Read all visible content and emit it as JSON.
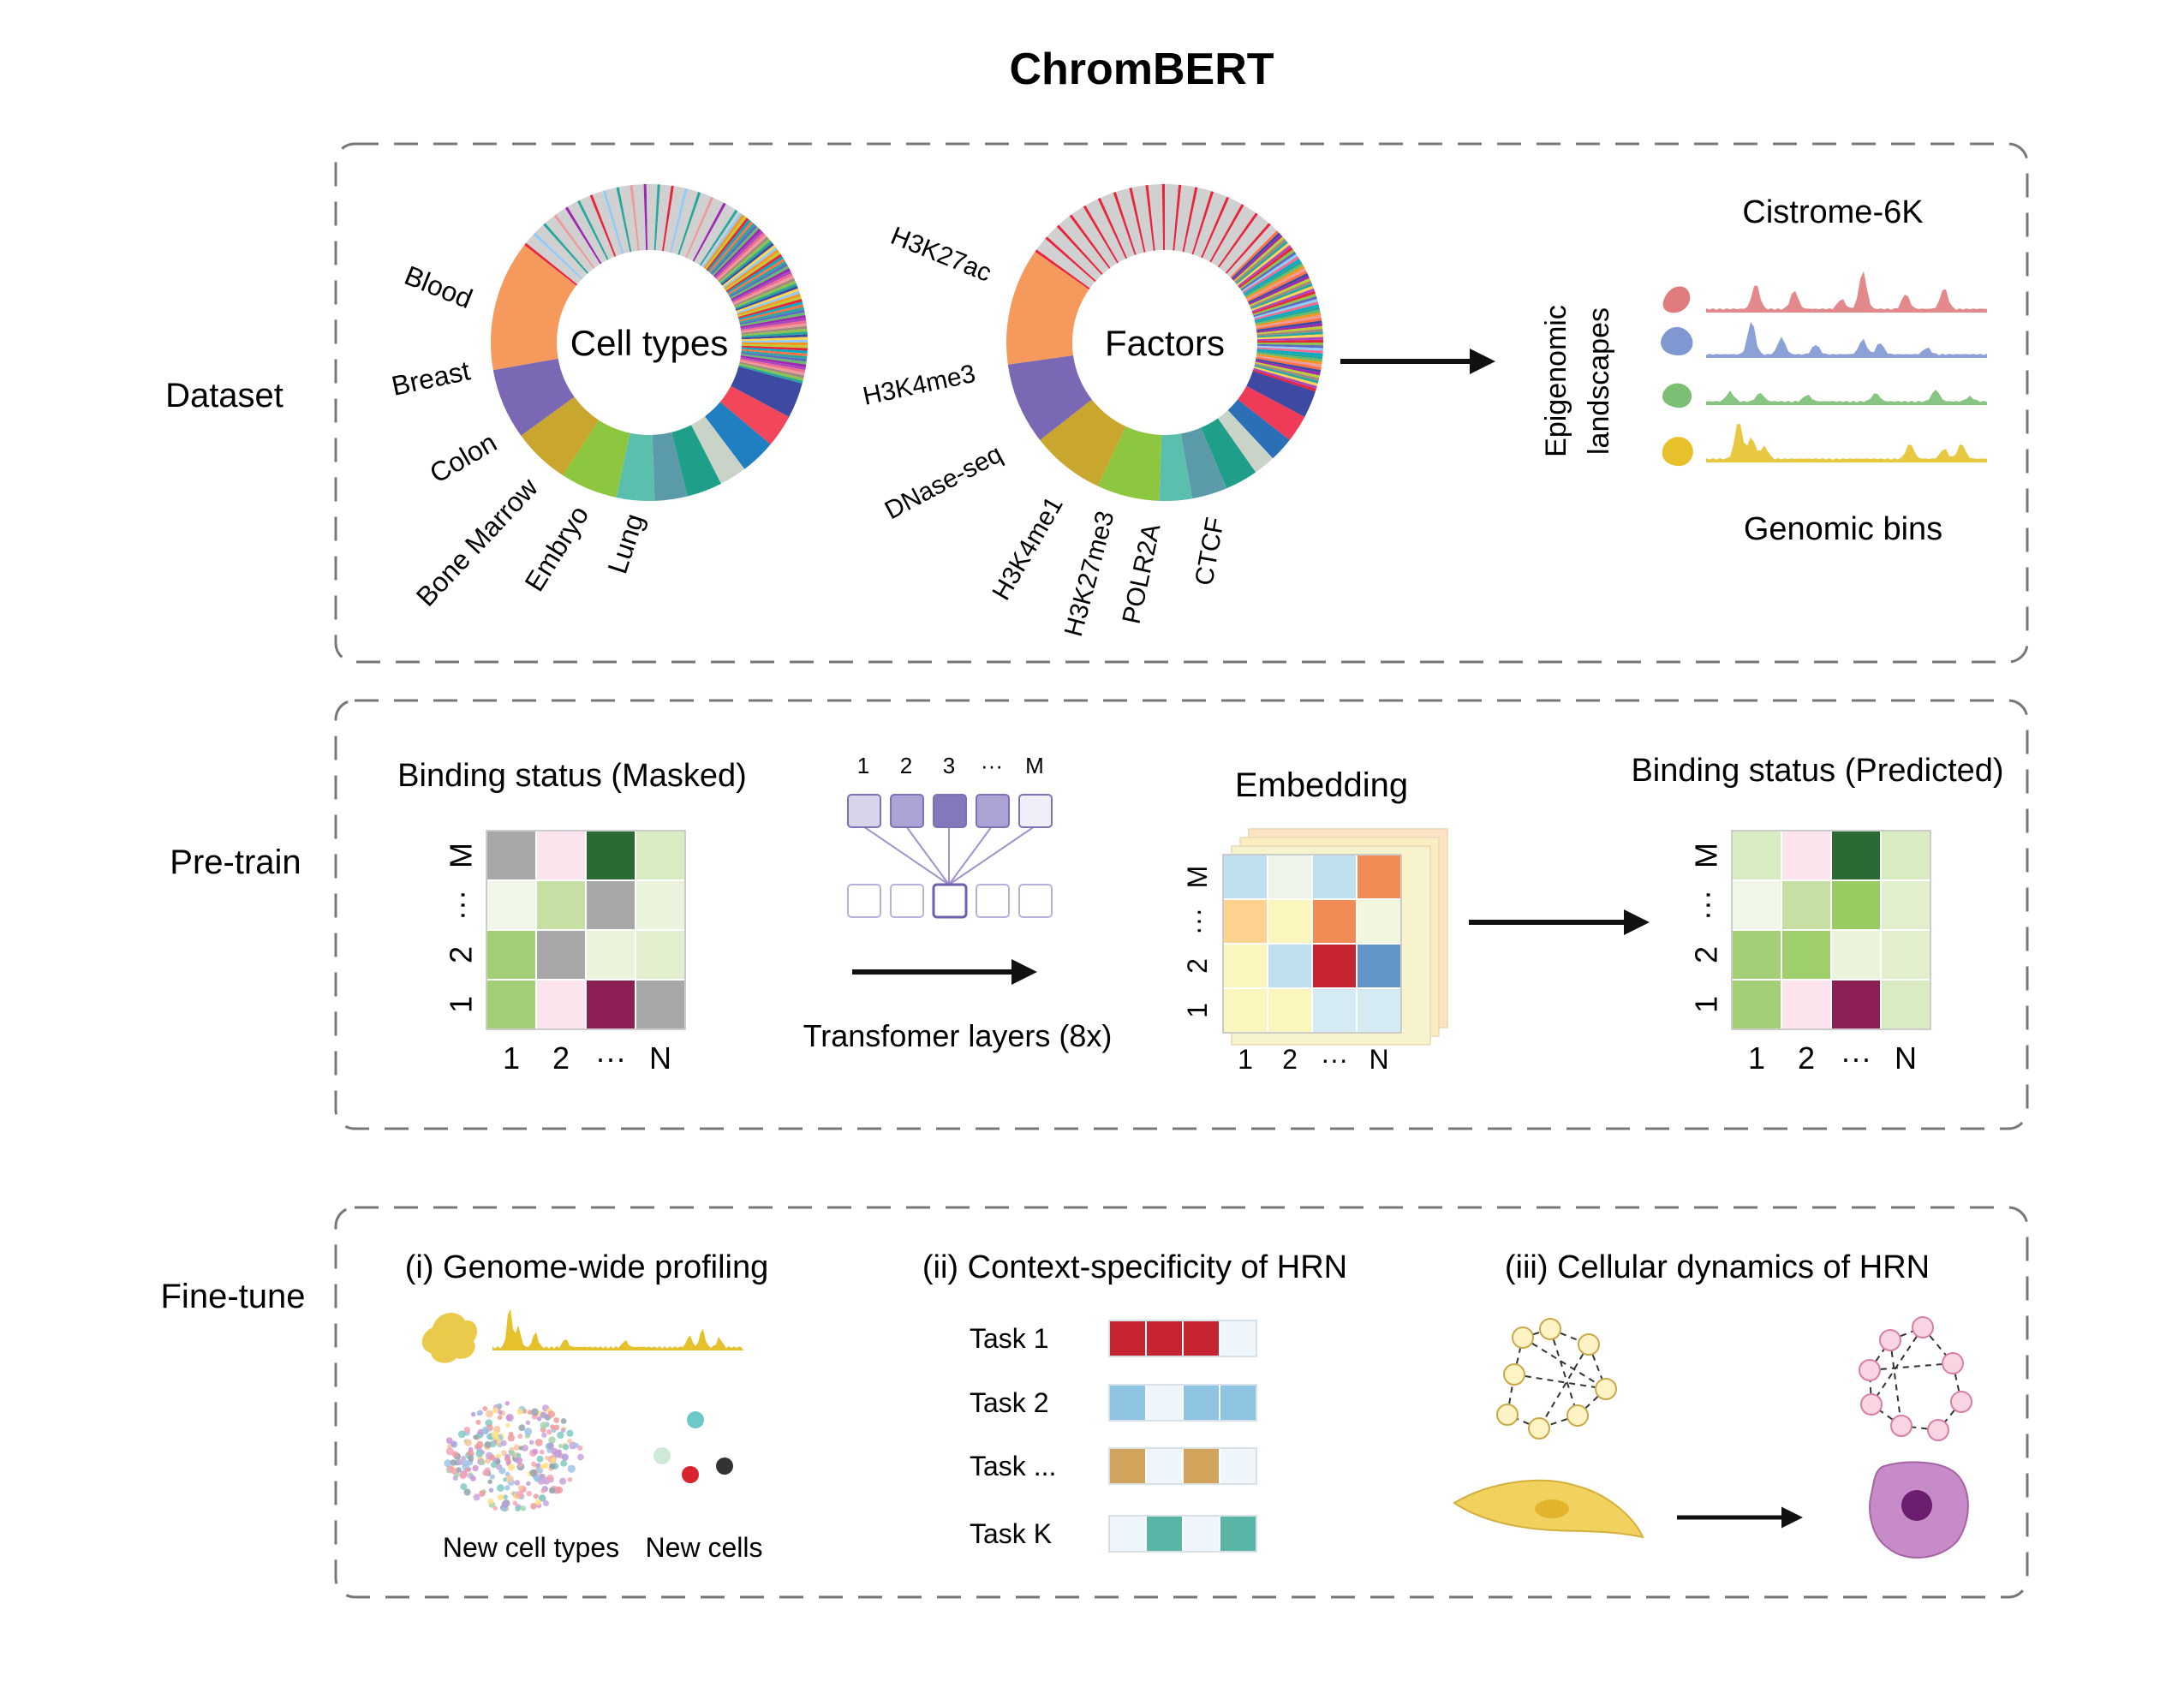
{
  "title": "ChromBERT",
  "sections": {
    "dataset": {
      "label": "Dataset",
      "cell_ring": {
        "center": "Cell types",
        "labels": [
          "Blood",
          "Breast",
          "Colon",
          "Bone Marrow",
          "Embryo",
          "Lung"
        ]
      },
      "factor_ring": {
        "center": "Factors",
        "labels": [
          "H3K27ac",
          "H3K4me3",
          "DNase-seq",
          "H3K4me1",
          "H3K27me3",
          "POLR2A",
          "CTCF"
        ]
      },
      "landscape": {
        "rotated_label_line1": "Epigenomic",
        "rotated_label_line2": "landscapes",
        "top": "Cistrome-6K",
        "bottom": "Genomic bins",
        "track_colors": [
          "#e07b7e",
          "#7f98d2",
          "#7cbf74",
          "#e6c12c"
        ]
      }
    },
    "pretrain": {
      "label": "Pre-train",
      "masked_title": "Binding status (Masked)",
      "predicted_title": "Binding status (Predicted)",
      "embedding_title": "Embedding",
      "transformer_label": "Transfomer layers (8x)",
      "token_labels": [
        "1",
        "2",
        "3",
        "···",
        "M"
      ],
      "col_labels": [
        "1",
        "2",
        "···",
        "N"
      ],
      "row_labels": [
        "M",
        "···",
        "2",
        "1"
      ],
      "masked_grid": [
        [
          "#a8a8a8",
          "#fbe4ee",
          "#2a6a34",
          "#d9ebc1"
        ],
        [
          "#f1f7e8",
          "#c6e0a4",
          "#a8a8a8",
          "#eaf4dc"
        ],
        [
          "#a3d076",
          "#a8a8a8",
          "#eaf4dc",
          "#e1efcc"
        ],
        [
          "#a3d076",
          "#fbe4ee",
          "#8c1f53",
          "#a8a8a8"
        ]
      ],
      "embedding_grid": [
        [
          "#bfe1ef",
          "#eef5e8",
          "#bfe1ef",
          "#f38b54"
        ],
        [
          "#fdd28e",
          "#fbf6be",
          "#f38b54",
          "#f2f6df"
        ],
        [
          "#fbf6be",
          "#bfe1ef",
          "#c62430",
          "#6395c8"
        ],
        [
          "#fbf6be",
          "#fbf6be",
          "#d5ebf4",
          "#d5ebf4"
        ]
      ],
      "predicted_grid": [
        [
          "#d9ebc1",
          "#fbe4ee",
          "#2a6a34",
          "#d9ebc1"
        ],
        [
          "#f1f7e8",
          "#c6e0a4",
          "#98cc62",
          "#e1efcc"
        ],
        [
          "#a3d076",
          "#9fcf6a",
          "#eaf4dc",
          "#e1efcc"
        ],
        [
          "#a3d076",
          "#fbe4ee",
          "#8c1f53",
          "#d9ebc1"
        ]
      ]
    },
    "finetune": {
      "label": "Fine-tune",
      "part1": {
        "title": "(i) Genome-wide profiling",
        "caption_a": "New cell types",
        "caption_b": "New cells"
      },
      "part2": {
        "title": "(ii) Context-specificity of HRN",
        "tasks": [
          {
            "label": "Task 1",
            "colors": [
              "#c62430",
              "#c62430",
              "#c62430",
              "#eef5fb"
            ]
          },
          {
            "label": "Task 2",
            "colors": [
              "#8ec3e2",
              "#eef5fb",
              "#8ec3e2",
              "#8ec3e2"
            ]
          },
          {
            "label": "Task ...",
            "colors": [
              "#d3a45c",
              "#eef5fb",
              "#d3a45c",
              "#eef5fb"
            ]
          },
          {
            "label": "Task K",
            "colors": [
              "#eef5fb",
              "#59b5a6",
              "#eef5fb",
              "#59b5a6"
            ]
          }
        ]
      },
      "part3": {
        "title": "(iii) Cellular dynamics of HRN"
      }
    }
  }
}
